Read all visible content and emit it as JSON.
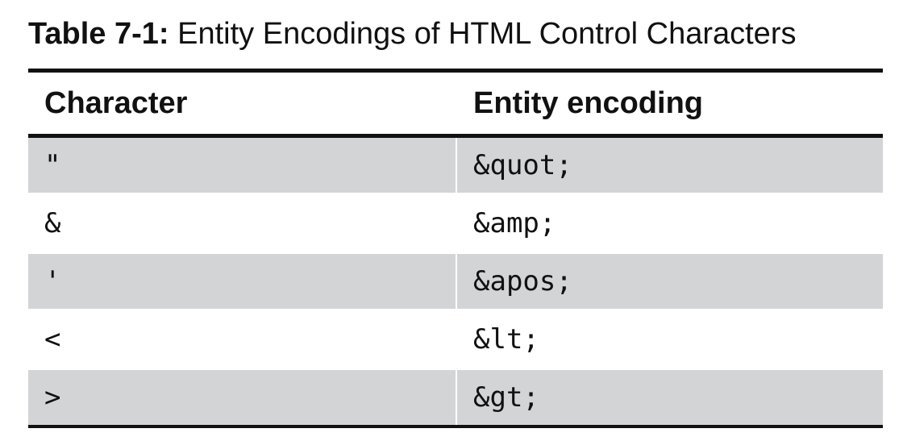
{
  "caption": {
    "label": "Table 7-1:",
    "text": "Entity Encodings of HTML Control Characters"
  },
  "table": {
    "headers": [
      "Character",
      "Entity encoding"
    ],
    "rows": [
      {
        "character": "\"",
        "encoding": "&quot;",
        "shaded": true
      },
      {
        "character": "&",
        "encoding": "&amp;",
        "shaded": false
      },
      {
        "character": "'",
        "encoding": "&apos;",
        "shaded": true
      },
      {
        "character": "<",
        "encoding": "&lt;",
        "shaded": false
      },
      {
        "character": ">",
        "encoding": "&gt;",
        "shaded": true
      }
    ]
  }
}
